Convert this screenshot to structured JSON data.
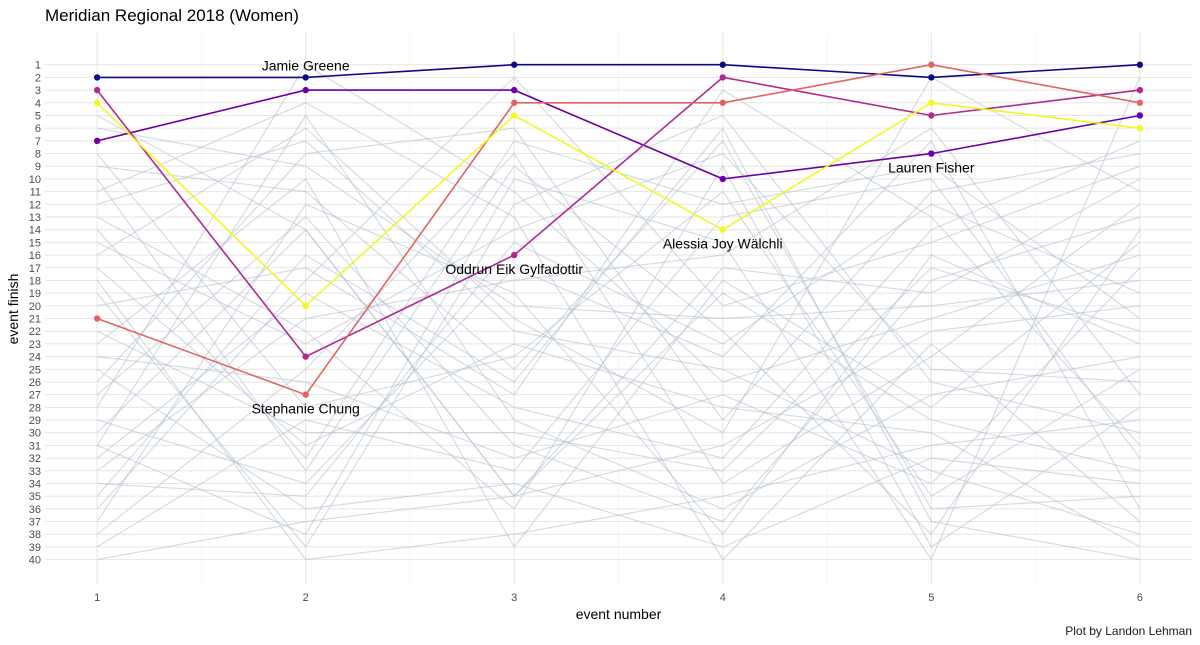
{
  "chart_data": {
    "type": "line",
    "title": "Meridian Regional 2018 (Women)",
    "xlabel": "event number",
    "ylabel": "event finish",
    "caption": "Plot by Landon Lehman",
    "x": [
      1,
      2,
      3,
      4,
      5,
      6
    ],
    "xlim": [
      0.75,
      6.25
    ],
    "ylim": [
      42,
      -1.5
    ],
    "y_reversed": true,
    "y_ticks": [
      1,
      2,
      3,
      4,
      5,
      6,
      7,
      8,
      9,
      10,
      11,
      12,
      13,
      14,
      15,
      16,
      17,
      18,
      19,
      20,
      21,
      22,
      23,
      24,
      25,
      26,
      27,
      28,
      29,
      30,
      31,
      32,
      33,
      34,
      35,
      36,
      37,
      38,
      39,
      40
    ],
    "grid": true,
    "highlight_series": [
      {
        "name": "Jamie Greene",
        "color": "#0d0887",
        "values": [
          2,
          2,
          1,
          1,
          2,
          1
        ],
        "label_at": 2,
        "label_pos": "above"
      },
      {
        "name": "Lauren Fisher",
        "color": "#6a00a8",
        "values": [
          7,
          3,
          3,
          10,
          8,
          5
        ],
        "label_at": 5,
        "label_pos": "below"
      },
      {
        "name": "Oddrun Eik Gylfadottir",
        "color": "#b12a90",
        "values": [
          3,
          24,
          16,
          2,
          5,
          3
        ],
        "label_at": 3,
        "label_pos": "below"
      },
      {
        "name": "Stephanie Chung",
        "color": "#e16462",
        "values": [
          21,
          27,
          4,
          4,
          1,
          4
        ],
        "label_at": 2,
        "label_pos": "below"
      },
      {
        "name": "Alessia Joy Wälchli",
        "color": "#f0f921",
        "values": [
          4,
          20,
          5,
          14,
          4,
          6
        ],
        "label_at": 4,
        "label_pos": "below"
      }
    ],
    "background_series": [
      [
        5,
        14,
        35,
        19,
        29,
        33
      ],
      [
        12,
        7,
        22,
        25,
        33,
        38
      ],
      [
        28,
        1,
        11,
        26,
        21,
        16
      ],
      [
        40,
        37,
        35,
        31,
        22,
        20
      ],
      [
        31,
        5,
        29,
        36,
        27,
        24
      ],
      [
        10,
        33,
        9,
        22,
        38,
        14
      ],
      [
        15,
        23,
        14,
        8,
        25,
        26
      ],
      [
        22,
        30,
        30,
        33,
        17,
        22
      ],
      [
        36,
        18,
        2,
        20,
        15,
        9
      ],
      [
        9,
        11,
        25,
        7,
        36,
        35
      ],
      [
        18,
        40,
        38,
        35,
        31,
        29
      ],
      [
        26,
        8,
        6,
        29,
        11,
        8
      ],
      [
        33,
        21,
        18,
        16,
        6,
        27
      ],
      [
        6,
        9,
        20,
        21,
        20,
        18
      ],
      [
        14,
        32,
        7,
        12,
        9,
        21
      ],
      [
        20,
        17,
        27,
        3,
        13,
        31
      ],
      [
        24,
        26,
        32,
        27,
        34,
        17
      ],
      [
        37,
        12,
        19,
        38,
        16,
        23
      ],
      [
        11,
        4,
        13,
        40,
        23,
        37
      ],
      [
        30,
        14,
        35,
        17,
        19,
        10
      ],
      [
        16,
        6,
        21,
        30,
        2,
        11
      ],
      [
        8,
        28,
        24,
        11,
        35,
        25
      ],
      [
        34,
        35,
        15,
        23,
        12,
        19
      ],
      [
        19,
        39,
        12,
        5,
        26,
        30
      ],
      [
        27,
        13,
        31,
        37,
        18,
        13
      ],
      [
        13,
        22,
        36,
        9,
        39,
        28
      ],
      [
        38,
        25,
        8,
        34,
        24,
        12
      ],
      [
        29,
        34,
        17,
        24,
        7,
        36
      ],
      [
        23,
        10,
        39,
        18,
        28,
        15
      ],
      [
        17,
        31,
        23,
        28,
        30,
        39
      ],
      [
        32,
        19,
        28,
        32,
        14,
        7
      ],
      [
        25,
        36,
        34,
        39,
        32,
        34
      ],
      [
        35,
        16,
        26,
        6,
        37,
        40
      ],
      [
        39,
        29,
        33,
        13,
        10,
        32
      ],
      [
        31,
        38,
        10,
        15,
        40,
        2
      ]
    ],
    "background_color": "#b3bfcd"
  }
}
